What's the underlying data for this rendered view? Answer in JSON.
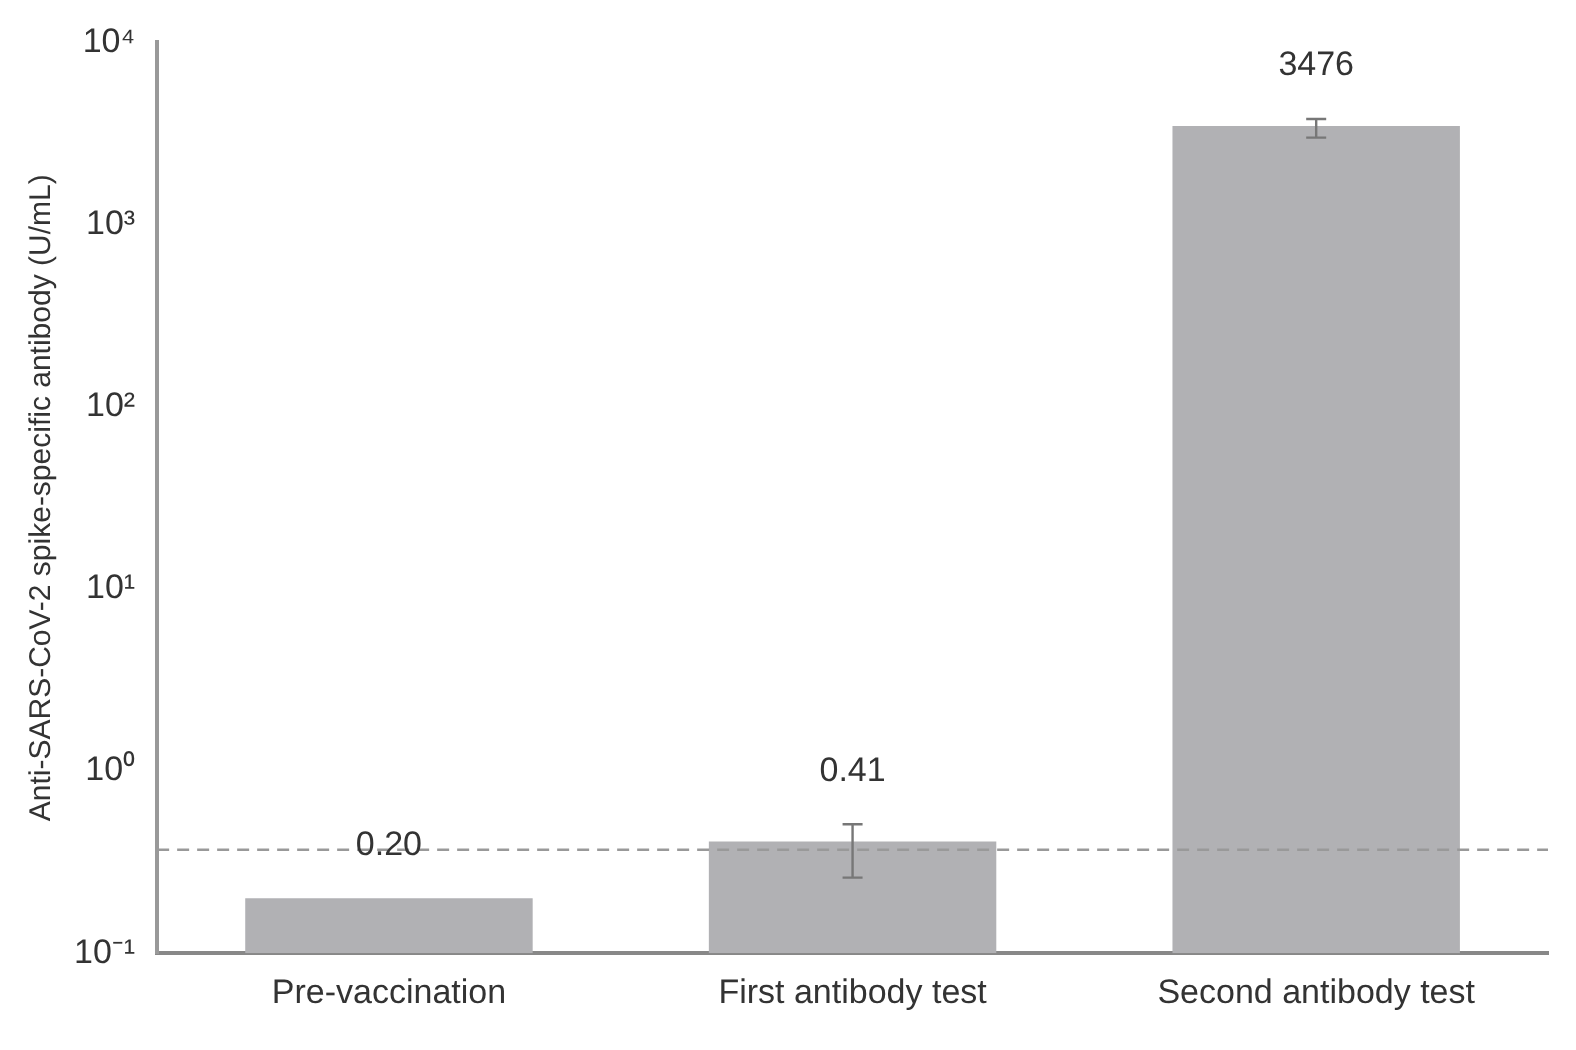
{
  "chart_data": {
    "type": "bar",
    "ylabel": "Anti-SARS-CoV-2 spike-specific antibody (U/mL)",
    "categories": [
      "Pre-vaccination",
      "First antibody test",
      "Second antibody test"
    ],
    "values": [
      0.2,
      0.41,
      3476
    ],
    "value_labels": [
      "0.20",
      "0.41",
      "3476"
    ],
    "errors": [
      null,
      [
        0.26,
        0.51
      ],
      [
        3000,
        3800
      ]
    ],
    "color": "#b1b1b4",
    "log": "y",
    "ylim": [
      0.1,
      10000
    ],
    "yticks": [
      {
        "value": 0.1,
        "label": "10⁻¹"
      },
      {
        "value": 1,
        "label": "10⁰"
      },
      {
        "value": 10,
        "label": "10¹"
      },
      {
        "value": 100,
        "label": "10²"
      },
      {
        "value": 1000,
        "label": "10³"
      },
      {
        "value": 10000,
        "label": "10⁴"
      }
    ],
    "ref_lines": [
      {
        "axis": "y",
        "value": 0.37,
        "color": "#999999",
        "line_style": "dashed"
      }
    ],
    "grid": false,
    "legend": false
  }
}
